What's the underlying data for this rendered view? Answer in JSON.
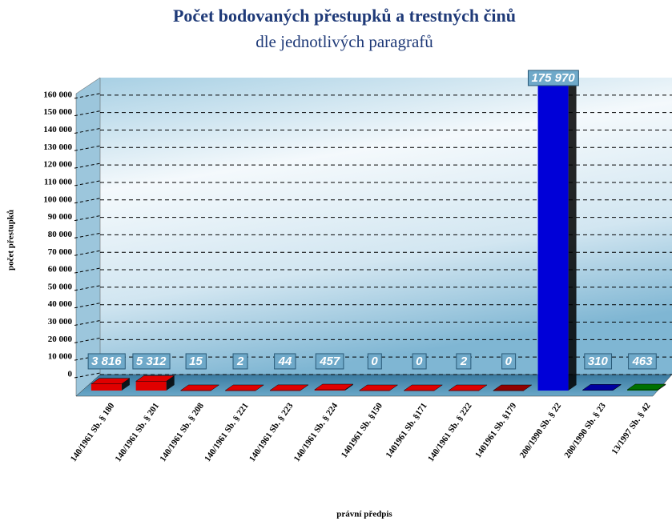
{
  "chart_data": {
    "type": "bar3d",
    "title": "Počet bodovaných přestupků a trestných činů",
    "subtitle": "dle jednotlivých paragrafů",
    "y_label": "počet přestupků",
    "x_label": "právní předpis",
    "categories": [
      "140/1961 Sb. § 180",
      "140/1961 Sb. § 201",
      "140/1961 Sb. § 208",
      "140/1961 Sb. § 221",
      "140/1961 Sb. § 223",
      "140/1961 Sb. § 224",
      "1401961 Sb. §150",
      "1401961 Sb. §171",
      "140/1961 Sb. § 222",
      "1401961 Sb. §179",
      "200/1990 Sb. § 22",
      "200/1990 Sb. § 23",
      "13/1997 Sb. § 42"
    ],
    "values": [
      3816,
      5312,
      15,
      2,
      44,
      457,
      0,
      0,
      2,
      0,
      175970,
      310,
      463
    ],
    "value_labels": [
      "3 816",
      "5 312",
      "15",
      "2",
      "44",
      "457",
      "0",
      "0",
      "2",
      "0",
      "175 970",
      "310",
      "463"
    ],
    "colors": [
      "#e00000",
      "#e00000",
      "#e00000",
      "#e00000",
      "#e00000",
      "#e00000",
      "#e00000",
      "#e00000",
      "#e00000",
      "#900000",
      "#0000d8",
      "#0000a0",
      "#007000"
    ],
    "ylim": [
      0,
      170000
    ],
    "yticks": [
      0,
      {
        "value": 10000,
        "label": "10 000"
      },
      {
        "value": 20000,
        "label": "20 000"
      },
      {
        "value": 30000,
        "label": "30 000"
      },
      {
        "value": 40000,
        "label": "40 000"
      },
      {
        "value": 50000,
        "label": "50 000"
      },
      {
        "value": 60000,
        "label": "60 000"
      },
      {
        "value": 70000,
        "label": "70 000"
      },
      {
        "value": 80000,
        "label": "80 000"
      },
      {
        "value": 90000,
        "label": "90 000"
      },
      {
        "value": 100000,
        "label": "100 000"
      },
      {
        "value": 110000,
        "label": "110 000"
      },
      {
        "value": 120000,
        "label": "120 000"
      },
      {
        "value": 130000,
        "label": "130 000"
      },
      {
        "value": 140000,
        "label": "140 000"
      },
      {
        "value": 150000,
        "label": "150 000"
      },
      {
        "value": 160000,
        "label": "160 000"
      }
    ],
    "grid": true
  }
}
